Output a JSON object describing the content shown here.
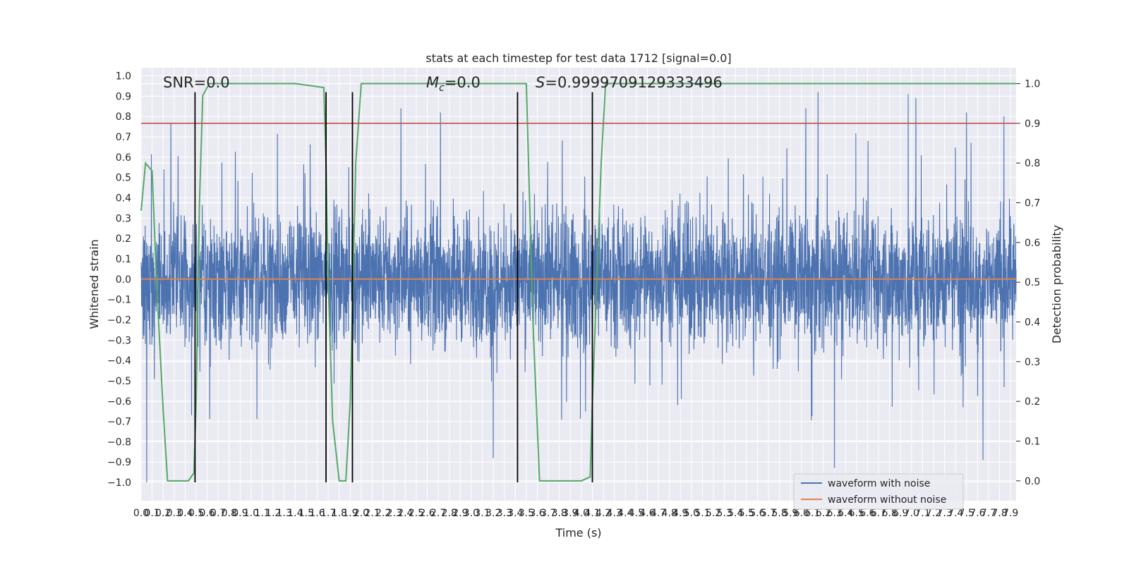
{
  "chart_data": {
    "type": "line",
    "title": "stats at each timestep for test data 1712 [signal=0.0]",
    "xlabel": "Time (s)",
    "ylabel_left": "Whitened strain",
    "ylabel_right": "Detection probability",
    "xlim": [
      0.0,
      7.95
    ],
    "ylim_left": [
      -1.09,
      1.04
    ],
    "ylim_right": [
      -0.05,
      1.04
    ],
    "grid": true,
    "x_ticks": [
      "0.0",
      "0.1",
      "0.2",
      "0.3",
      "0.4",
      "0.5",
      "0.6",
      "0.7",
      "0.8",
      "0.9",
      "1.0",
      "1.1",
      "1.2",
      "1.3",
      "1.4",
      "1.5",
      "1.6",
      "1.7",
      "1.8",
      "1.9",
      "2.0",
      "2.1",
      "2.2",
      "2.3",
      "2.4",
      "2.5",
      "2.6",
      "2.7",
      "2.8",
      "2.9",
      "3.0",
      "3.1",
      "3.2",
      "3.3",
      "3.4",
      "3.5",
      "3.6",
      "3.7",
      "3.8",
      "3.9",
      "4.0",
      "4.1",
      "4.2",
      "4.3",
      "4.4",
      "4.5",
      "4.6",
      "4.7",
      "4.8",
      "4.9",
      "5.0",
      "5.1",
      "5.2",
      "5.3",
      "5.4",
      "5.5",
      "5.6",
      "5.7",
      "5.8",
      "5.9",
      "6.0",
      "6.1",
      "6.2",
      "6.3",
      "6.4",
      "6.5",
      "6.6",
      "6.7",
      "6.8",
      "6.9",
      "7.0",
      "7.1",
      "7.2",
      "7.3",
      "7.4",
      "7.5",
      "7.6",
      "7.7",
      "7.8",
      "7.9"
    ],
    "y_ticks_left": [
      "1.0",
      "0.9",
      "0.8",
      "0.7",
      "0.6",
      "0.5",
      "0.4",
      "0.3",
      "0.2",
      "0.1",
      "0.0",
      "-0.1",
      "-0.2",
      "-0.3",
      "-0.4",
      "-0.5",
      "-0.6",
      "-0.7",
      "-0.8",
      "-0.9",
      "-1.0"
    ],
    "y_ticks_right": [
      "1.0",
      "0.9",
      "0.8",
      "0.7",
      "0.6",
      "0.5",
      "0.4",
      "0.3",
      "0.2",
      "0.1",
      "0.0"
    ],
    "annotations": {
      "snr": "SNR=0.0",
      "mc": "=0.0",
      "mc_symbol": "M",
      "mc_subscript": "c",
      "s": "=0.9999709129333496",
      "s_symbol": "S"
    },
    "legend": {
      "location": "lower-right",
      "entries": [
        "waveform with noise",
        "waveform without noise"
      ]
    },
    "series": [
      {
        "name": "waveform with noise",
        "axis": "left",
        "color": "#4c72b0",
        "kind": "noise",
        "sample_count": 4096,
        "core_range": [
          -0.42,
          0.42
        ],
        "peak_max": 0.92,
        "peak_min": -1.0,
        "notable_peaks": [
          {
            "x": 0.05,
            "y": -1.0
          },
          {
            "x": 0.27,
            "y": 0.77
          },
          {
            "x": 2.36,
            "y": 0.84
          },
          {
            "x": 2.72,
            "y": 0.82
          },
          {
            "x": 3.2,
            "y": -0.88
          },
          {
            "x": 6.04,
            "y": 0.84
          },
          {
            "x": 6.15,
            "y": 0.92
          },
          {
            "x": 6.3,
            "y": -0.93
          },
          {
            "x": 6.97,
            "y": 0.91
          },
          {
            "x": 7.04,
            "y": 0.89
          },
          {
            "x": 7.5,
            "y": 0.82
          },
          {
            "x": 7.65,
            "y": -0.89
          },
          {
            "x": 7.84,
            "y": 0.8
          }
        ]
      },
      {
        "name": "waveform without noise",
        "axis": "left",
        "color": "#dd8452",
        "x": [
          0.0,
          7.95
        ],
        "y": [
          0.0,
          0.0
        ]
      },
      {
        "name": "detection probability",
        "axis": "right",
        "color": "#55a868",
        "x": [
          0.0,
          0.04,
          0.1,
          0.14,
          0.2,
          0.24,
          0.3,
          0.35,
          0.43,
          0.48,
          0.5,
          0.53,
          0.56,
          0.62,
          1.4,
          1.66,
          1.68,
          1.7,
          1.74,
          1.8,
          1.86,
          1.9,
          1.95,
          2.0,
          2.05,
          3.5,
          3.52,
          3.56,
          3.62,
          3.68,
          3.9,
          4.0,
          4.08,
          4.1,
          4.14,
          4.18,
          4.22,
          7.95
        ],
        "y": [
          0.68,
          0.8,
          0.78,
          0.5,
          0.18,
          0.0,
          0.0,
          0.0,
          0.0,
          0.02,
          0.2,
          0.7,
          0.97,
          1.0,
          1.0,
          0.99,
          0.8,
          0.5,
          0.15,
          0.0,
          0.0,
          0.2,
          0.8,
          1.0,
          1.0,
          1.0,
          0.8,
          0.4,
          0.0,
          0.0,
          0.0,
          0.0,
          0.01,
          0.2,
          0.5,
          0.8,
          1.0,
          1.0
        ]
      }
    ],
    "threshold_line": {
      "axis": "right",
      "y": 0.9,
      "color": "#c44e52"
    },
    "event_markers": {
      "color": "#000000",
      "x": [
        0.49,
        1.68,
        1.92,
        3.42,
        4.1
      ],
      "y_range": [
        -1.0,
        0.92
      ]
    }
  }
}
